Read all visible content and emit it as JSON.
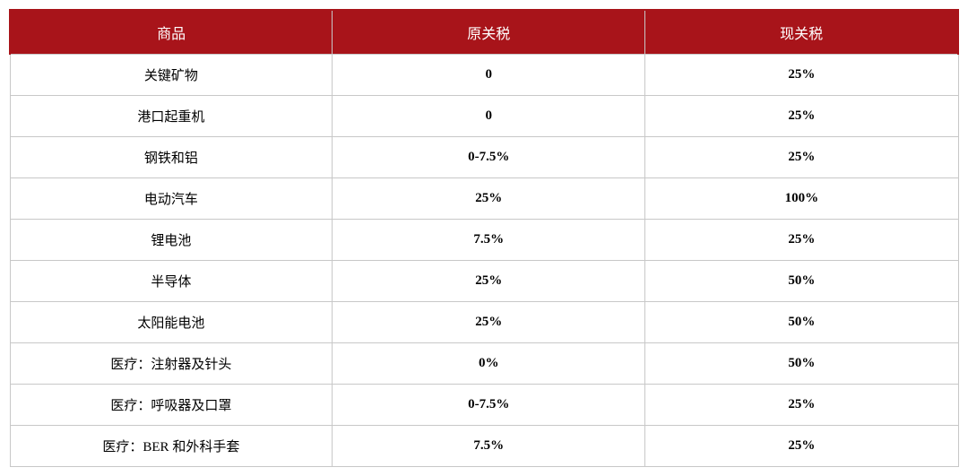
{
  "table": {
    "type": "table",
    "header_bg_color": "#a8141a",
    "header_text_color": "#ffffff",
    "border_color": "#c8c8c8",
    "cell_bg_color": "#ffffff",
    "cell_text_color": "#000000",
    "header_fontsize": 16,
    "cell_fontsize": 15,
    "columns": [
      {
        "key": "product",
        "label": "商品",
        "width": "34%",
        "align": "center"
      },
      {
        "key": "old_tariff",
        "label": "原关税",
        "width": "33%",
        "align": "center"
      },
      {
        "key": "new_tariff",
        "label": "现关税",
        "width": "33%",
        "align": "center"
      }
    ],
    "rows": [
      {
        "product": "关键矿物",
        "old_tariff": "0",
        "new_tariff": "25%"
      },
      {
        "product": "港口起重机",
        "old_tariff": "0",
        "new_tariff": "25%"
      },
      {
        "product": "钢铁和铝",
        "old_tariff": "0-7.5%",
        "new_tariff": "25%"
      },
      {
        "product": "电动汽车",
        "old_tariff": "25%",
        "new_tariff": "100%"
      },
      {
        "product": "锂电池",
        "old_tariff": "7.5%",
        "new_tariff": "25%"
      },
      {
        "product": "半导体",
        "old_tariff": "25%",
        "new_tariff": "50%"
      },
      {
        "product": "太阳能电池",
        "old_tariff": "25%",
        "new_tariff": "50%"
      },
      {
        "product": "医疗：注射器及针头",
        "old_tariff": "0%",
        "new_tariff": "50%"
      },
      {
        "product": "医疗：呼吸器及口罩",
        "old_tariff": "0-7.5%",
        "new_tariff": "25%"
      },
      {
        "product": "医疗：BER 和外科手套",
        "old_tariff": "7.5%",
        "new_tariff": "25%"
      }
    ]
  }
}
